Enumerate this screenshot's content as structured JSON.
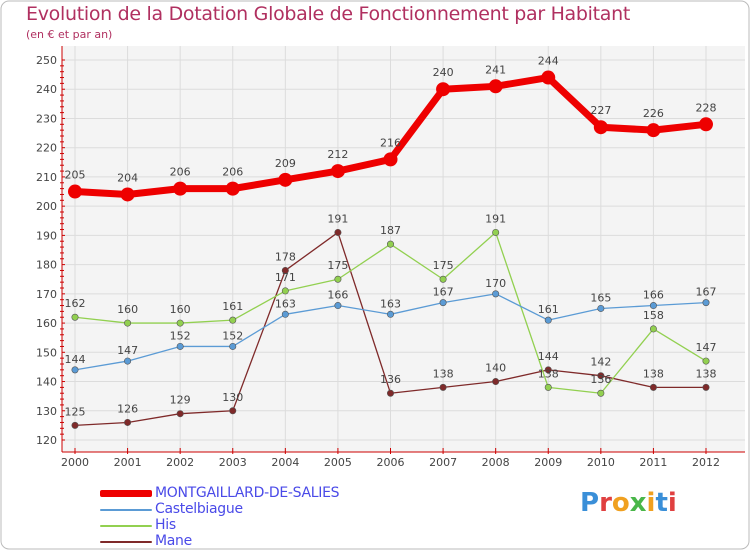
{
  "title": "Evolution de la Dotation Globale de Fonctionnement par Habitant",
  "subtitle": "(en € et par an)",
  "logo": {
    "text": "Proxiti",
    "colors": [
      "#3a8fd8",
      "#e04040",
      "#f0a020",
      "#49b649",
      "#f0a020",
      "#3a8fd8",
      "#e04040"
    ]
  },
  "colors": {
    "title": "#b03060",
    "legend_text": "#4a4ae8",
    "axis": "#cc0000",
    "grid": "#dcdcdc",
    "plot_bg": "#f4f4f4"
  },
  "chart_data": {
    "type": "line",
    "title": "Evolution de la Dotation Globale de Fonctionnement par Habitant",
    "subtitle": "(en € et par an)",
    "categories": [
      "2000",
      "2001",
      "2002",
      "2003",
      "2004",
      "2005",
      "2006",
      "2007",
      "2008",
      "2009",
      "2010",
      "2011",
      "2012"
    ],
    "ylim": [
      120,
      250
    ],
    "yticks": [
      120,
      130,
      140,
      150,
      160,
      170,
      180,
      190,
      200,
      210,
      220,
      230,
      240,
      250
    ],
    "grid": true,
    "legend_position": "bottom-left",
    "series": [
      {
        "name": "MONTGAILLARD-DE-SALIES",
        "color": "#ee0000",
        "width": 7,
        "marker": 7,
        "values": [
          205,
          204,
          206,
          206,
          209,
          212,
          216,
          240,
          241,
          244,
          227,
          226,
          228
        ]
      },
      {
        "name": "Castelbiague",
        "color": "#5b9bd5",
        "width": 1.3,
        "marker": 3.2,
        "values": [
          144,
          147,
          152,
          152,
          163,
          166,
          163,
          167,
          170,
          161,
          165,
          166,
          167
        ]
      },
      {
        "name": "His",
        "color": "#92d050",
        "width": 1.3,
        "marker": 3.2,
        "values": [
          162,
          160,
          160,
          161,
          171,
          175,
          187,
          175,
          191,
          138,
          136,
          158,
          147
        ]
      },
      {
        "name": "Mane",
        "color": "#7f2a2a",
        "width": 1.3,
        "marker": 3.2,
        "values": [
          125,
          126,
          129,
          130,
          178,
          191,
          136,
          138,
          140,
          144,
          142,
          138,
          138
        ]
      }
    ]
  }
}
